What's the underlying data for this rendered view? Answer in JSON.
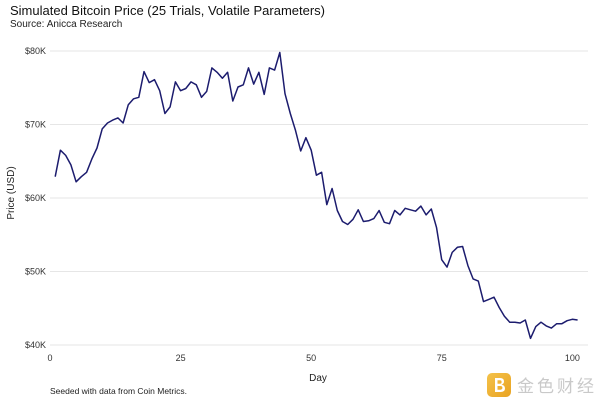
{
  "header": {
    "title": "Simulated Bitcoin Price (25 Trials, Volatile Parameters)",
    "subtitle": "Source: Anicca Research"
  },
  "footer": {
    "caption": "Seeded with data from Coin Metrics."
  },
  "watermark": {
    "text": "金色财经",
    "icon": "b-logo-icon"
  },
  "colors": {
    "line": "#1c1c6e",
    "grid": "#e6e6e6",
    "watermark": "#f0b43a"
  },
  "chart_data": {
    "type": "line",
    "title": "Simulated Bitcoin Price (25 Trials, Volatile Parameters)",
    "xlabel": "Day",
    "ylabel": "Price (USD)",
    "xlim": [
      0,
      103
    ],
    "ylim": [
      40000,
      81500
    ],
    "x_ticks": [
      0,
      25,
      50,
      75,
      100
    ],
    "y_ticks": [
      40000,
      50000,
      60000,
      70000,
      80000
    ],
    "y_tick_labels": [
      "$40K",
      "$50K",
      "$60K",
      "$70K",
      "$80K"
    ],
    "grid": "horizontal",
    "series": [
      {
        "x": [
          1,
          2,
          3,
          4,
          5,
          6,
          7,
          8,
          9,
          10,
          11,
          12,
          13,
          14,
          15,
          16,
          17,
          18,
          19,
          20,
          21,
          22,
          23,
          24,
          25,
          26,
          27,
          28,
          29,
          30,
          31,
          32,
          33,
          34,
          35,
          36,
          37,
          38,
          39,
          40,
          41,
          42,
          43,
          44,
          45,
          46,
          47,
          48,
          49,
          50,
          51,
          52,
          53,
          54,
          55,
          56,
          57,
          58,
          59,
          60,
          61,
          62,
          63,
          64,
          65,
          66,
          67,
          68,
          69,
          70,
          71,
          72,
          73,
          74,
          75,
          76,
          77,
          78,
          79,
          80,
          81,
          82,
          83,
          84,
          85,
          86,
          87,
          88,
          89,
          90,
          91,
          92,
          93,
          94,
          95,
          96,
          97,
          98,
          99,
          100,
          101
        ],
        "values": [
          62900,
          66500,
          65800,
          64500,
          62200,
          62900,
          63500,
          65300,
          66800,
          69400,
          70200,
          70600,
          70900,
          70200,
          72700,
          73500,
          73700,
          77200,
          75700,
          76100,
          74600,
          71500,
          72400,
          75800,
          74600,
          74900,
          75800,
          75400,
          73700,
          74500,
          77700,
          77100,
          76300,
          77100,
          73200,
          75100,
          75400,
          77700,
          75500,
          77100,
          74100,
          77700,
          77400,
          79800,
          74200,
          71500,
          69200,
          66400,
          68200,
          66500,
          63100,
          63500,
          59100,
          61300,
          58300,
          56800,
          56400,
          57100,
          58400,
          56800,
          56900,
          57200,
          58300,
          56700,
          56500,
          58300,
          57700,
          58600,
          58400,
          58200,
          58900,
          57700,
          58500,
          56000,
          51600,
          50600,
          52600,
          53300,
          53400,
          50800,
          49000,
          48700,
          45900,
          46200,
          46500,
          45100,
          43900,
          43100,
          43100,
          43000,
          43400,
          40900,
          42500,
          43100,
          42600,
          42300,
          42900,
          42900,
          43300,
          43500,
          43400
        ]
      }
    ]
  }
}
